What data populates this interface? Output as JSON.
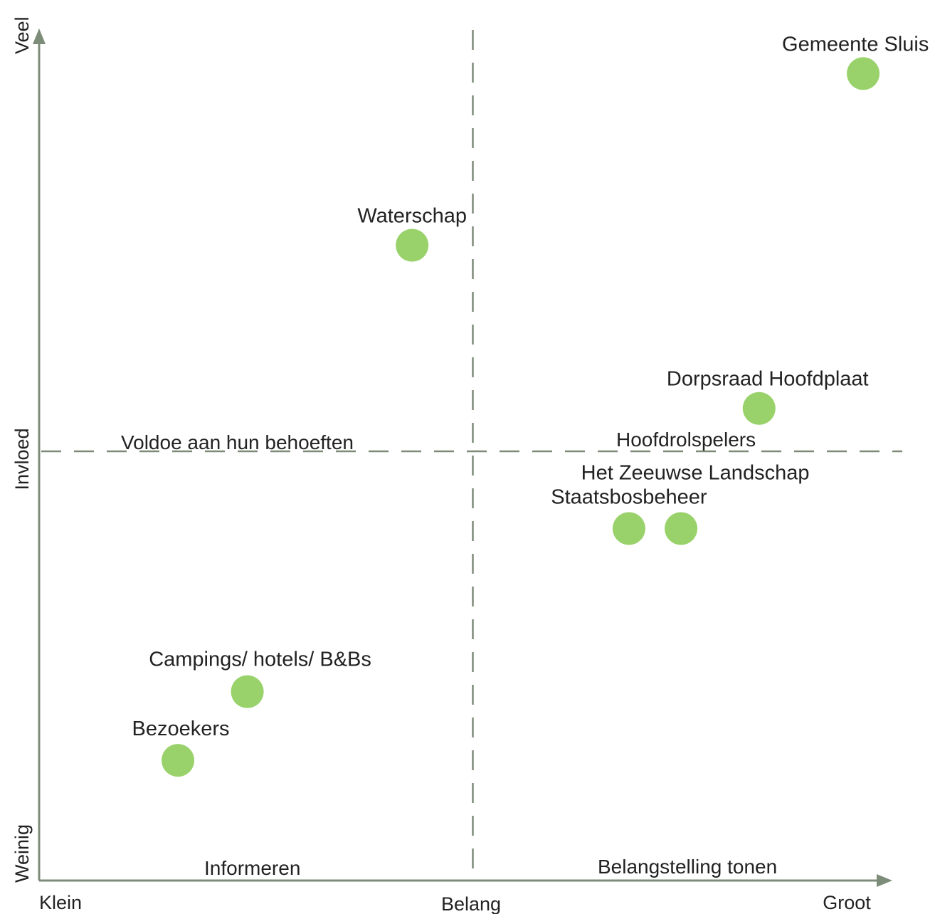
{
  "chart_data": {
    "type": "scatter",
    "title": "",
    "xlabel": "Belang",
    "ylabel": "Invloed",
    "x_scale_words": {
      "low": "Klein",
      "high": "Groot"
    },
    "y_scale_words": {
      "low": "Weinig",
      "high": "Veel"
    },
    "xlim": [
      0,
      10
    ],
    "ylim": [
      0,
      10
    ],
    "dividers": {
      "x": 5.0,
      "y": 5.0
    },
    "quadrants": {
      "top_left": "Voldoe aan hun behoeften",
      "top_right": "Hoofdrolspelers",
      "bottom_left": "Informeren",
      "bottom_right": "Belangstelling tonen"
    },
    "points": [
      {
        "name": "Gemeente Sluis",
        "x": 9.5,
        "y": 9.4
      },
      {
        "name": "Waterschap",
        "x": 4.3,
        "y": 7.4
      },
      {
        "name": "Dorpsraad Hoofdplaat",
        "x": 8.3,
        "y": 5.5
      },
      {
        "name": "Staatsbosbeheer",
        "x": 6.8,
        "y": 4.1
      },
      {
        "name": "Het Zeeuwse Landschap",
        "x": 7.4,
        "y": 4.1
      },
      {
        "name": "Campings/ hotels/ B&Bs",
        "x": 2.4,
        "y": 2.2
      },
      {
        "name": "Bezoekers",
        "x": 1.6,
        "y": 1.4
      }
    ],
    "grid": false,
    "legend": "none",
    "colors": {
      "point": "#99d26b",
      "axis": "#7d8c79",
      "divider": "#7d8c79",
      "text": "#222222"
    }
  }
}
